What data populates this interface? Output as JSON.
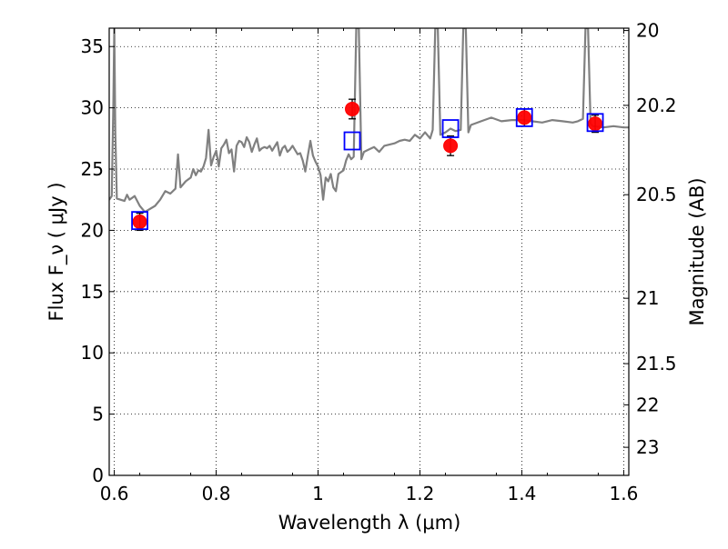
{
  "chart_data": {
    "type": "scatter",
    "title": "",
    "xlabel": "Wavelength  λ (μm)",
    "ylabel": "Flux  F_ν  ( μJy )",
    "ylabel_right": "Magnitude (AB)",
    "xlim": [
      0.59,
      1.61
    ],
    "ylim": [
      0,
      36.5
    ],
    "grid": true,
    "x_ticks": [
      0.6,
      0.8,
      1.0,
      1.2,
      1.4,
      1.6
    ],
    "x_tick_labels": [
      "0.6",
      "0.8",
      "1",
      "1.2",
      "1.4",
      "1.6"
    ],
    "y_ticks": [
      0,
      5,
      10,
      15,
      20,
      25,
      30,
      35
    ],
    "y_tick_labels": [
      "0",
      "5",
      "10",
      "15",
      "20",
      "25",
      "30",
      "35"
    ],
    "right_axis": {
      "unit": "AB magnitude",
      "ticks": [
        20,
        20.2,
        20.5,
        21,
        21.5,
        22,
        23
      ],
      "tick_labels": [
        "20",
        "20.2",
        "20.5",
        "21",
        "21.5",
        "22",
        "23"
      ]
    },
    "series": [
      {
        "kind": "line",
        "color": "#808080",
        "points": [
          [
            0.59,
            22.5
          ],
          [
            0.595,
            22.8
          ],
          [
            0.598,
            30
          ],
          [
            0.6,
            36.5
          ],
          [
            0.602,
            28
          ],
          [
            0.605,
            22.6
          ],
          [
            0.62,
            22.4
          ],
          [
            0.625,
            22.9
          ],
          [
            0.63,
            22.5
          ],
          [
            0.64,
            22.8
          ],
          [
            0.65,
            22.0
          ],
          [
            0.66,
            21.5
          ],
          [
            0.68,
            22.0
          ],
          [
            0.69,
            22.5
          ],
          [
            0.7,
            23.2
          ],
          [
            0.71,
            23.0
          ],
          [
            0.72,
            23.4
          ],
          [
            0.725,
            26.2
          ],
          [
            0.73,
            23.5
          ],
          [
            0.74,
            24.0
          ],
          [
            0.75,
            24.3
          ],
          [
            0.755,
            25.0
          ],
          [
            0.76,
            24.5
          ],
          [
            0.765,
            24.9
          ],
          [
            0.77,
            24.8
          ],
          [
            0.775,
            25.2
          ],
          [
            0.78,
            25.9
          ],
          [
            0.785,
            28.2
          ],
          [
            0.79,
            25.3
          ],
          [
            0.795,
            26.0
          ],
          [
            0.8,
            26.5
          ],
          [
            0.805,
            25.2
          ],
          [
            0.81,
            26.7
          ],
          [
            0.815,
            27.0
          ],
          [
            0.82,
            27.4
          ],
          [
            0.825,
            26.3
          ],
          [
            0.83,
            26.6
          ],
          [
            0.835,
            24.8
          ],
          [
            0.84,
            26.9
          ],
          [
            0.845,
            27.3
          ],
          [
            0.85,
            27.2
          ],
          [
            0.855,
            26.8
          ],
          [
            0.86,
            27.6
          ],
          [
            0.865,
            27.2
          ],
          [
            0.87,
            26.4
          ],
          [
            0.875,
            27.0
          ],
          [
            0.88,
            27.5
          ],
          [
            0.885,
            26.5
          ],
          [
            0.89,
            26.7
          ],
          [
            0.895,
            26.8
          ],
          [
            0.9,
            26.7
          ],
          [
            0.905,
            26.9
          ],
          [
            0.91,
            26.5
          ],
          [
            0.92,
            27.2
          ],
          [
            0.925,
            26.1
          ],
          [
            0.93,
            26.7
          ],
          [
            0.935,
            26.9
          ],
          [
            0.94,
            26.4
          ],
          [
            0.945,
            26.6
          ],
          [
            0.95,
            26.9
          ],
          [
            0.96,
            26.2
          ],
          [
            0.965,
            26.3
          ],
          [
            0.97,
            25.7
          ],
          [
            0.975,
            24.8
          ],
          [
            0.98,
            26.1
          ],
          [
            0.985,
            27.3
          ],
          [
            0.99,
            26.1
          ],
          [
            0.995,
            25.6
          ],
          [
            1.0,
            25.2
          ],
          [
            1.005,
            24.5
          ],
          [
            1.01,
            22.5
          ],
          [
            1.015,
            24.3
          ],
          [
            1.02,
            24.0
          ],
          [
            1.025,
            24.6
          ],
          [
            1.03,
            23.5
          ],
          [
            1.035,
            23.2
          ],
          [
            1.04,
            24.6
          ],
          [
            1.05,
            24.9
          ],
          [
            1.055,
            25.7
          ],
          [
            1.06,
            26.2
          ],
          [
            1.065,
            25.8
          ],
          [
            1.07,
            26.0
          ],
          [
            1.075,
            36.5
          ],
          [
            1.08,
            36.5
          ],
          [
            1.085,
            25.8
          ],
          [
            1.09,
            26.4
          ],
          [
            1.1,
            26.6
          ],
          [
            1.11,
            26.8
          ],
          [
            1.12,
            26.4
          ],
          [
            1.13,
            26.9
          ],
          [
            1.14,
            27.0
          ],
          [
            1.15,
            27.1
          ],
          [
            1.16,
            27.3
          ],
          [
            1.17,
            27.4
          ],
          [
            1.18,
            27.3
          ],
          [
            1.19,
            27.8
          ],
          [
            1.2,
            27.5
          ],
          [
            1.21,
            28.0
          ],
          [
            1.22,
            27.5
          ],
          [
            1.225,
            28.2
          ],
          [
            1.23,
            36.5
          ],
          [
            1.235,
            36.5
          ],
          [
            1.24,
            27.8
          ],
          [
            1.25,
            28.0
          ],
          [
            1.26,
            28.3
          ],
          [
            1.27,
            28.1
          ],
          [
            1.28,
            28.2
          ],
          [
            1.285,
            36.5
          ],
          [
            1.29,
            36.5
          ],
          [
            1.295,
            28.0
          ],
          [
            1.3,
            28.6
          ],
          [
            1.32,
            28.9
          ],
          [
            1.34,
            29.2
          ],
          [
            1.36,
            28.9
          ],
          [
            1.38,
            29.0
          ],
          [
            1.4,
            29.0
          ],
          [
            1.42,
            28.9
          ],
          [
            1.44,
            28.8
          ],
          [
            1.46,
            29.0
          ],
          [
            1.48,
            28.9
          ],
          [
            1.5,
            28.8
          ],
          [
            1.51,
            28.9
          ],
          [
            1.52,
            29.1
          ],
          [
            1.525,
            36.5
          ],
          [
            1.53,
            36.5
          ],
          [
            1.535,
            28.7
          ],
          [
            1.54,
            28.5
          ],
          [
            1.56,
            28.4
          ],
          [
            1.58,
            28.5
          ],
          [
            1.6,
            28.4
          ],
          [
            1.61,
            28.4
          ]
        ]
      },
      {
        "kind": "errorbar",
        "color": "#ff0000",
        "points": [
          {
            "x": 0.65,
            "y": 20.7,
            "err": 0.7
          },
          {
            "x": 1.067,
            "y": 29.9,
            "err": 0.8
          },
          {
            "x": 1.26,
            "y": 26.9,
            "err": 0.8
          },
          {
            "x": 1.405,
            "y": 29.2,
            "err": 0.7
          },
          {
            "x": 1.544,
            "y": 28.7,
            "err": 0.7
          }
        ]
      },
      {
        "kind": "square_markers",
        "color": "#0000ff",
        "points": [
          {
            "x": 0.65,
            "y": 20.8
          },
          {
            "x": 1.067,
            "y": 27.3
          },
          {
            "x": 1.26,
            "y": 28.3
          },
          {
            "x": 1.405,
            "y": 29.2
          },
          {
            "x": 1.544,
            "y": 28.8
          }
        ]
      }
    ]
  }
}
